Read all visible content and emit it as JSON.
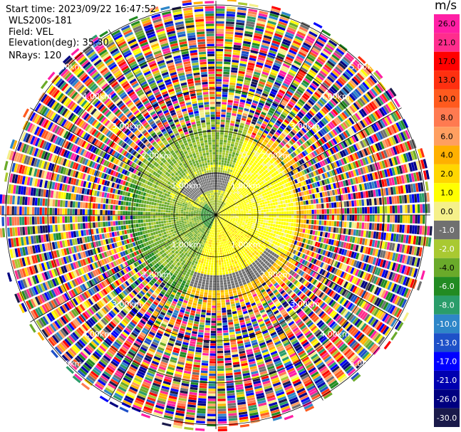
{
  "header": {
    "start_time": "Start time: 2023/09/22 16:47:52",
    "instrument": "WLS200s-181",
    "field": "Field: VEL",
    "elevation": "Elevation(deg): 35.30",
    "nrays": "NRays: 120"
  },
  "colorbar": {
    "unit": "m/s",
    "ticks": [
      "26.0",
      "21.0",
      "17.0",
      "13.0",
      "10.0",
      "8.0",
      "6.0",
      "4.0",
      "2.0",
      "1.0",
      "0.0",
      "-1.0",
      "-2.0",
      "-4.0",
      "-6.0",
      "-8.0",
      "-10.0",
      "-13.0",
      "-17.0",
      "-21.0",
      "-26.0",
      "-30.0"
    ],
    "colors": [
      "#ff1fa5",
      "#ff2d8d",
      "#ff0000",
      "#ff3010",
      "#ff5a1e",
      "#ff7a50",
      "#ff9f60",
      "#ffb000",
      "#ffd600",
      "#ffff00",
      "#f5f08a",
      "#707070",
      "#a9c931",
      "#6aaa2a",
      "#228b22",
      "#2a9d6a",
      "#2e86c8",
      "#1e50c8",
      "#0000ff",
      "#0000b0",
      "#000080",
      "#1a1a4a"
    ]
  },
  "chart_data": {
    "type": "heatmap",
    "projection": "polar PPI",
    "field": "VEL",
    "unit": "m/s",
    "nrays": 120,
    "range_rings_km": [
      1.0,
      2.0,
      3.0,
      4.0,
      5.0
    ],
    "ring_labels": [
      "1.00km",
      "2.00km",
      "3.00km",
      "4.00km",
      "5.00km"
    ],
    "noise_beyond_km": 2.25,
    "max_range_km": 5.1,
    "near_field_description": "Yellow positive velocities toward east and south, green negative velocities toward west, gray near-zero band in north sector",
    "value_range": [
      -30.0,
      30.0
    ]
  }
}
